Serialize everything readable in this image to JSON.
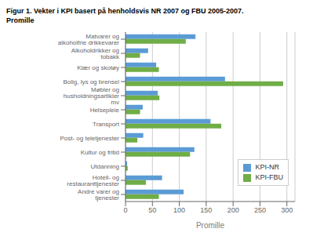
{
  "chart_data": {
    "type": "bar",
    "orientation": "horizontal",
    "title": "Figur 1. Vekter i KPI basert på henholdsvis NR 2007 og FBU 2005-2007.",
    "subtitle": "Promille",
    "xlabel": "Promille",
    "categories": [
      "Matvarer og alkoholfrie drikkevarer",
      "Alkoholdrikker og tobakk",
      "Klær og skotøy",
      "Bolig, lys og brensel",
      "Møbler og husholdningsartikler mv",
      "Helsepleie",
      "Transport",
      "Post- og teletjenester",
      "Kultur og fritid",
      "Utdanning",
      "Hotell- og restauranttjenester",
      "Andre varer og tjenester"
    ],
    "series": [
      {
        "name": "KPI-NR",
        "color": "#5b9bd5",
        "values": [
          130,
          42,
          57,
          185,
          60,
          32,
          158,
          33,
          128,
          3,
          68,
          108
        ]
      },
      {
        "name": "KPI-FBU",
        "color": "#70ad47",
        "values": [
          112,
          27,
          62,
          293,
          63,
          27,
          178,
          22,
          120,
          4,
          38,
          62
        ]
      }
    ],
    "xlim": [
      0,
      315
    ],
    "xticks": [
      0,
      50,
      100,
      150,
      200,
      250,
      300
    ],
    "grid": true,
    "legend": "lower right"
  }
}
